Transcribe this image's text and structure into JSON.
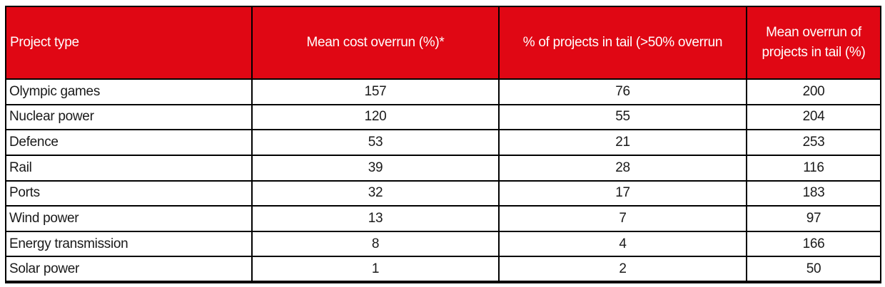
{
  "colors": {
    "header_bg": "#e00714",
    "header_text": "#ffffff",
    "border": "#000000",
    "body_text": "#1a1a1a"
  },
  "table": {
    "columns": [
      {
        "label": "Project type"
      },
      {
        "label": "Mean cost overrun (%)*"
      },
      {
        "label": "% of projects in tail (>50% overrun"
      },
      {
        "label": "Mean overrun of projects in tail (%)"
      }
    ],
    "rows": [
      {
        "project": "Olympic games",
        "mean_cost_overrun": "157",
        "pct_in_tail": "76",
        "mean_overrun_tail": "200"
      },
      {
        "project": "Nuclear power",
        "mean_cost_overrun": "120",
        "pct_in_tail": "55",
        "mean_overrun_tail": "204"
      },
      {
        "project": "Defence",
        "mean_cost_overrun": "53",
        "pct_in_tail": "21",
        "mean_overrun_tail": "253"
      },
      {
        "project": "Rail",
        "mean_cost_overrun": "39",
        "pct_in_tail": "28",
        "mean_overrun_tail": "116"
      },
      {
        "project": "Ports",
        "mean_cost_overrun": "32",
        "pct_in_tail": "17",
        "mean_overrun_tail": "183"
      },
      {
        "project": "Wind power",
        "mean_cost_overrun": "13",
        "pct_in_tail": "7",
        "mean_overrun_tail": "97"
      },
      {
        "project": "Energy transmission",
        "mean_cost_overrun": "8",
        "pct_in_tail": "4",
        "mean_overrun_tail": "166"
      },
      {
        "project": "Solar power",
        "mean_cost_overrun": "1",
        "pct_in_tail": "2",
        "mean_overrun_tail": "50"
      }
    ]
  },
  "chart_data": {
    "type": "table",
    "title": "",
    "columns": [
      "Project type",
      "Mean cost overrun (%)*",
      "% of projects in tail (>50% overrun",
      "Mean overrun of projects in tail (%)"
    ],
    "rows": [
      [
        "Olympic games",
        157,
        76,
        200
      ],
      [
        "Nuclear power",
        120,
        55,
        204
      ],
      [
        "Defence",
        53,
        21,
        253
      ],
      [
        "Rail",
        39,
        28,
        116
      ],
      [
        "Ports",
        32,
        17,
        183
      ],
      [
        "Wind power",
        13,
        7,
        97
      ],
      [
        "Energy transmission",
        8,
        4,
        166
      ],
      [
        "Solar power",
        1,
        2,
        50
      ]
    ],
    "layout_hints": {
      "header_style": "red background, white text",
      "numeric_columns_alignment": "center",
      "first_column_alignment": "left",
      "grid": true
    }
  }
}
